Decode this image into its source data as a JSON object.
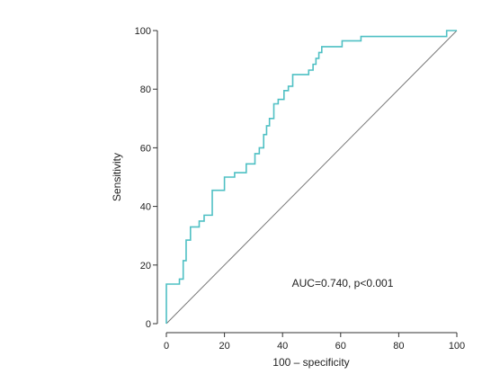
{
  "chart_data": {
    "type": "line",
    "title": "",
    "xlabel": "100 – specificity",
    "ylabel": "Sensitivity",
    "xlim": [
      0,
      100
    ],
    "ylim": [
      0,
      100
    ],
    "x_ticks": [
      0,
      20,
      40,
      60,
      80,
      100
    ],
    "y_ticks": [
      0,
      20,
      40,
      60,
      80,
      100
    ],
    "grid": false,
    "legend": "none",
    "annotation": "AUC=0.740, p<0.001",
    "colors": {
      "roc": "#4fc0c4",
      "reference": "#777777",
      "axis": "#333333"
    },
    "series": [
      {
        "values_xy": [
          [
            0,
            0
          ],
          [
            0,
            13.5
          ],
          [
            4.5,
            13.5
          ],
          [
            4.5,
            15.2
          ],
          [
            5.8,
            15.2
          ],
          [
            5.8,
            21.5
          ],
          [
            6.8,
            21.5
          ],
          [
            6.8,
            28.5
          ],
          [
            8.3,
            28.5
          ],
          [
            8.3,
            33
          ],
          [
            11.3,
            33
          ],
          [
            11.3,
            35
          ],
          [
            13,
            35
          ],
          [
            13,
            37
          ],
          [
            15.8,
            37
          ],
          [
            15.8,
            45.5
          ],
          [
            20,
            45.5
          ],
          [
            20,
            50
          ],
          [
            23.5,
            50
          ],
          [
            23.5,
            51.5
          ],
          [
            27.5,
            51.5
          ],
          [
            27.5,
            54.5
          ],
          [
            30.5,
            54.5
          ],
          [
            30.5,
            58
          ],
          [
            32,
            58
          ],
          [
            32,
            60
          ],
          [
            33.5,
            60
          ],
          [
            33.5,
            64.5
          ],
          [
            34.5,
            64.5
          ],
          [
            34.5,
            67.5
          ],
          [
            35.5,
            67.5
          ],
          [
            35.5,
            70
          ],
          [
            37,
            70
          ],
          [
            37,
            75
          ],
          [
            38.5,
            75
          ],
          [
            38.5,
            76.5
          ],
          [
            40.5,
            76.5
          ],
          [
            40.5,
            79.5
          ],
          [
            42,
            79.5
          ],
          [
            42,
            81
          ],
          [
            43.5,
            81
          ],
          [
            43.5,
            85
          ],
          [
            49,
            85
          ],
          [
            49,
            86.5
          ],
          [
            50.5,
            86.5
          ],
          [
            50.5,
            88.5
          ],
          [
            51.5,
            88.5
          ],
          [
            51.5,
            90.5
          ],
          [
            52.5,
            90.5
          ],
          [
            52.5,
            92.5
          ],
          [
            53.5,
            92.5
          ],
          [
            53.5,
            94.5
          ],
          [
            60.5,
            94.5
          ],
          [
            60.5,
            96.5
          ],
          [
            67,
            96.5
          ],
          [
            67,
            98
          ],
          [
            96.5,
            98
          ],
          [
            96.5,
            100
          ],
          [
            100,
            100
          ]
        ]
      }
    ]
  }
}
